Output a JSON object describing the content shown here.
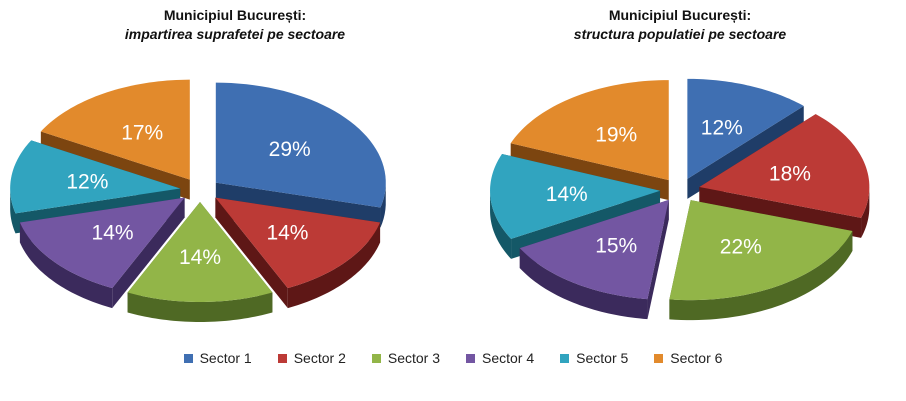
{
  "chart_data": [
    {
      "type": "pie",
      "title": "Municipiul București:",
      "subtitle": "impartirea suprafetei pe sectoare",
      "categories": [
        "Sector 1",
        "Sector 2",
        "Sector 3",
        "Sector 4",
        "Sector 5",
        "Sector 6"
      ],
      "values": [
        29,
        14,
        14,
        14,
        12,
        17
      ],
      "labels": [
        "29%",
        "14%",
        "14%",
        "14%",
        "12%",
        "17%"
      ],
      "style": "3d-exploded"
    },
    {
      "type": "pie",
      "title": "Municipiul București:",
      "subtitle": "structura populatiei pe sectoare",
      "categories": [
        "Sector 1",
        "Sector 2",
        "Sector 3",
        "Sector 4",
        "Sector 5",
        "Sector 6"
      ],
      "values": [
        12,
        18,
        22,
        15,
        14,
        19
      ],
      "labels": [
        "12%",
        "18%",
        "22%",
        "15%",
        "14%",
        "19%"
      ],
      "style": "3d-exploded"
    }
  ],
  "legend": {
    "placement": "bottom",
    "items": [
      {
        "label": "Sector 1",
        "color": "#3f6fb2"
      },
      {
        "label": "Sector 2",
        "color": "#bc3a36"
      },
      {
        "label": "Sector 3",
        "color": "#92b548"
      },
      {
        "label": "Sector 4",
        "color": "#7356a2"
      },
      {
        "label": "Sector 5",
        "color": "#31a4bf"
      },
      {
        "label": "Sector 6",
        "color": "#e28a2c"
      }
    ]
  },
  "colors": {
    "top": [
      "#3f6fb2",
      "#bc3a36",
      "#92b548",
      "#7356a2",
      "#31a4bf",
      "#e28a2c"
    ],
    "side": [
      "#1f3d68",
      "#5e1716",
      "#4f6924",
      "#3b2a5c",
      "#145867",
      "#7c4510"
    ]
  }
}
